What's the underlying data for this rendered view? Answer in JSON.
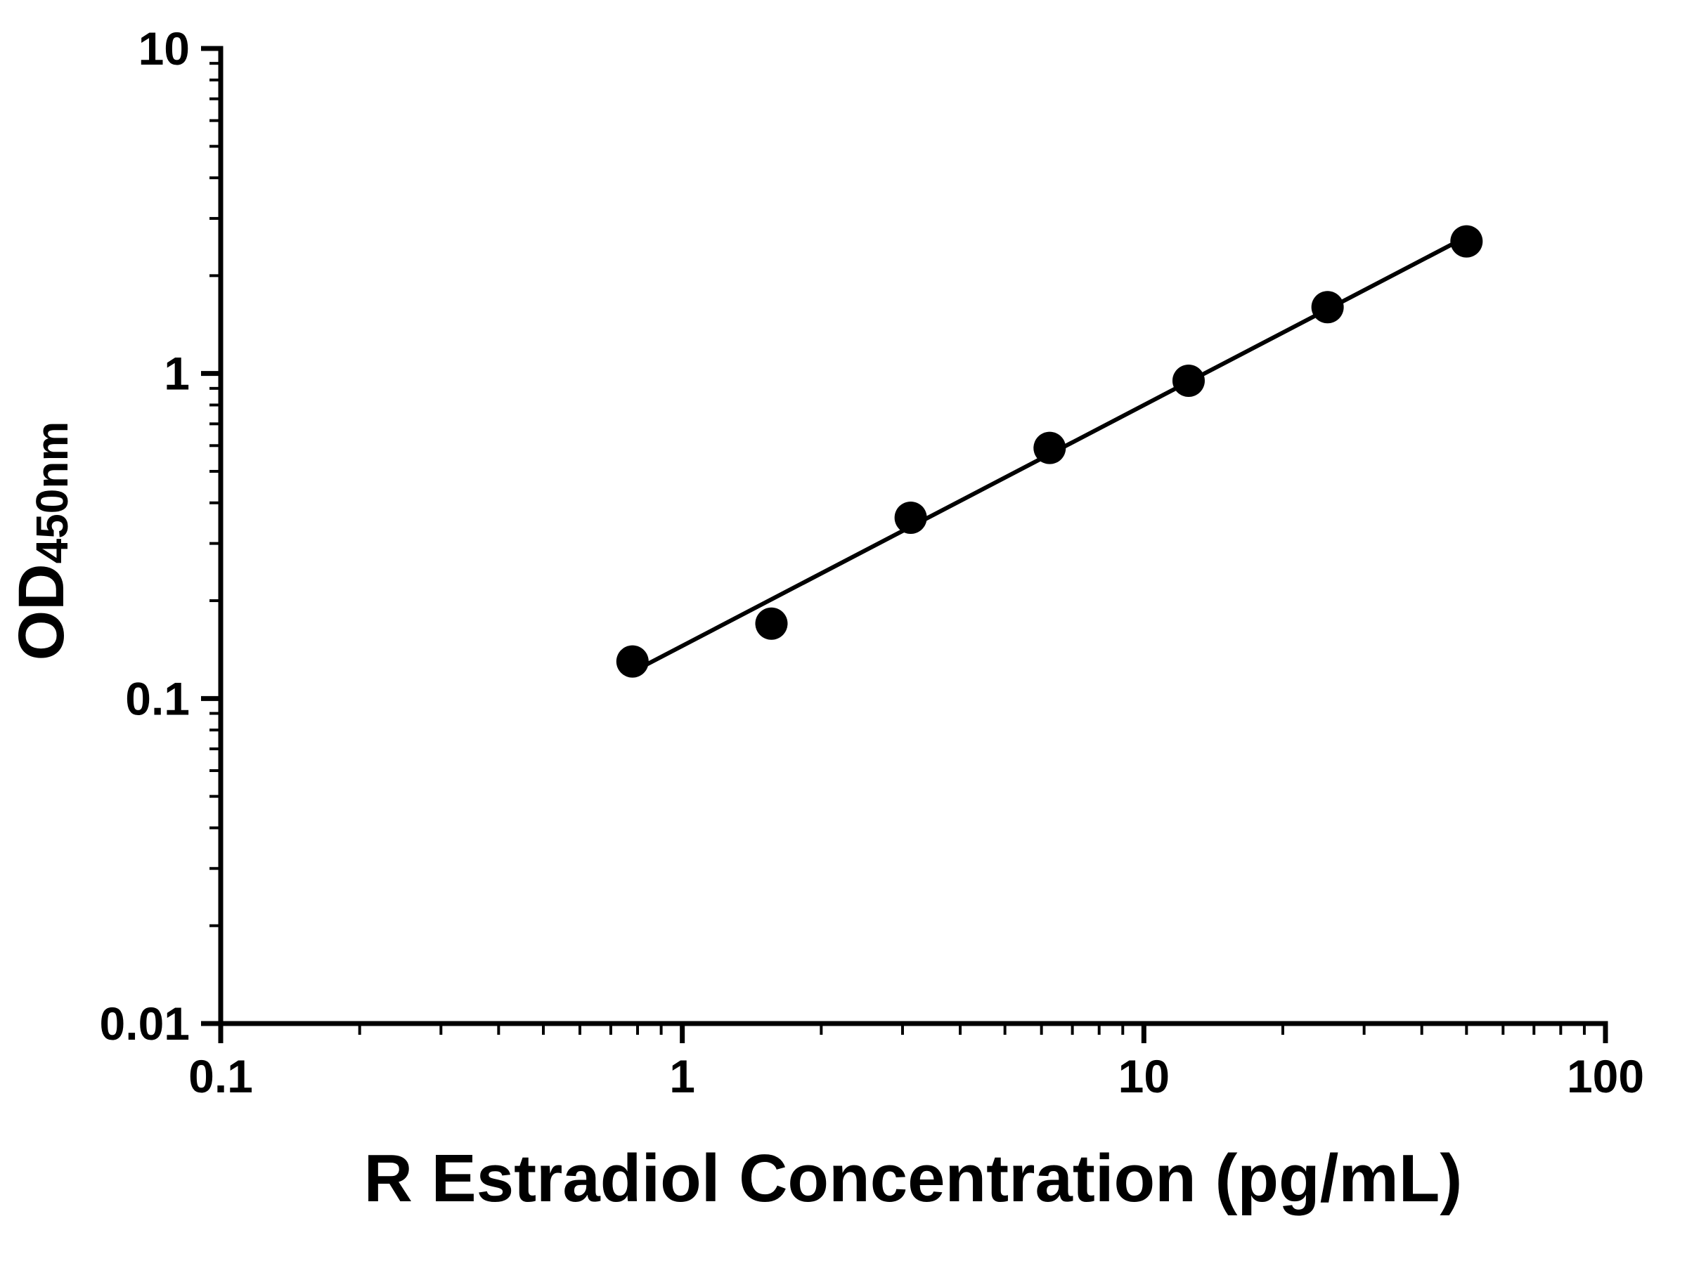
{
  "chart_data": {
    "type": "scatter",
    "title": "",
    "xlabel": "R Estradiol Concentration (pg/mL)",
    "ylabel_main": "OD",
    "ylabel_sub": "450nm",
    "x": [
      0.78,
      1.56,
      3.125,
      6.25,
      12.5,
      25,
      50
    ],
    "y": [
      0.13,
      0.17,
      0.36,
      0.59,
      0.95,
      1.6,
      2.55
    ],
    "x_scale": "log",
    "y_scale": "log",
    "xlim": [
      0.1,
      100
    ],
    "ylim": [
      0.01,
      10
    ],
    "x_ticks": [
      0.1,
      1,
      10,
      100
    ],
    "x_tick_labels": [
      "0.1",
      "1",
      "10",
      "100"
    ],
    "y_ticks": [
      0.01,
      0.1,
      1,
      10
    ],
    "y_tick_labels": [
      "0.01",
      "0.1",
      "1",
      "10"
    ],
    "trendline": true,
    "grid": false,
    "legend": "none",
    "marker_color": "#000000",
    "line_color": "#000000",
    "background": "#ffffff"
  }
}
